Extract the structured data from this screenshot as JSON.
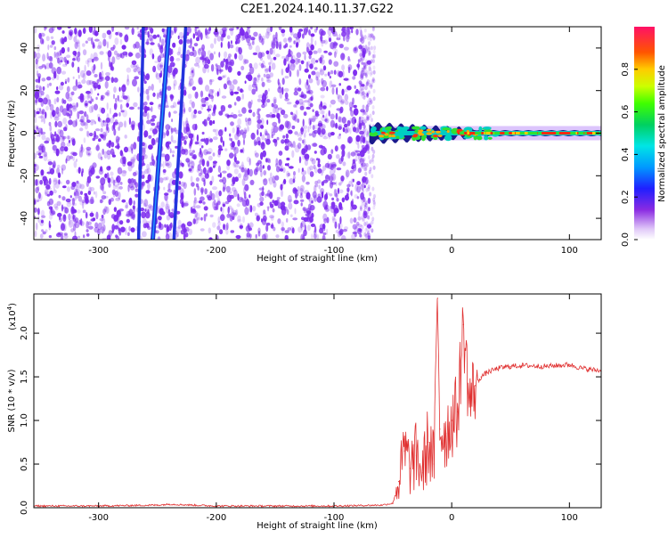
{
  "title": "C2E1.2024.140.11.37.G22",
  "colors": {
    "noise": "#7d2bef",
    "spectrum_band": "#2233dd",
    "snr_line": "#e03030"
  },
  "chart_data": [
    {
      "type": "heatmap",
      "name": "spectrogram",
      "xlabel": "Height of straight line (km)",
      "ylabel": "Frequency (Hz)",
      "xlim": [
        -355,
        127
      ],
      "ylim": [
        -50,
        50
      ],
      "x_ticks": [
        -300,
        -200,
        -100,
        0,
        100
      ],
      "y_ticks": [
        -40,
        -20,
        0,
        20,
        40
      ],
      "x_tick_labels": [
        "-300",
        "-200",
        "-100",
        "0",
        "100"
      ],
      "y_tick_labels": [
        "-40",
        "-20",
        "0",
        "20",
        "40"
      ],
      "noise_region_x": [
        -355,
        -70
      ],
      "signal_region_x": [
        -70,
        127
      ],
      "signal_frequency_hz": 0,
      "stripes": [
        {
          "x_at_top": -262,
          "x_at_bottom": -266
        },
        {
          "x_at_top": -240,
          "x_at_bottom": -254
        },
        {
          "x_at_top": -226,
          "x_at_bottom": -236
        }
      ],
      "colorbar": {
        "label": "Normalized spectral amplitude",
        "range": [
          0,
          1
        ],
        "ticks": [
          0.0,
          0.2,
          0.4,
          0.6,
          0.8
        ],
        "tick_labels": [
          "0.0",
          "0.2",
          "0.4",
          "0.6",
          "0.8"
        ]
      }
    },
    {
      "type": "line",
      "name": "snr",
      "xlabel": "Height of straight line (km)",
      "ylabel": "SNR (10 * v/v)",
      "yscale_label": "(x10",
      "yscale_exp": "4",
      "xlim": [
        -355,
        127
      ],
      "ylim": [
        0,
        2.45
      ],
      "x_ticks": [
        -300,
        -200,
        -100,
        0,
        100
      ],
      "y_ticks": [
        0.0,
        0.5,
        1.0,
        1.5,
        2.0
      ],
      "x_tick_labels": [
        "-300",
        "-200",
        "-100",
        "0",
        "100"
      ],
      "y_tick_labels": [
        "0.0",
        "0.5",
        "1.0",
        "1.5",
        "2.0"
      ],
      "series": [
        {
          "x": [
            -355,
            -300,
            -250,
            -240,
            -200,
            -150,
            -100,
            -60,
            -50,
            -45,
            -40,
            -35,
            -30,
            -25,
            -20,
            -15,
            -12,
            -10,
            -5,
            0,
            5,
            10,
            15,
            20,
            25,
            30,
            40,
            50,
            60,
            80,
            100,
            110,
            120,
            127
          ],
          "values": [
            0.02,
            0.02,
            0.03,
            0.04,
            0.02,
            0.02,
            0.02,
            0.03,
            0.05,
            0.3,
            0.65,
            0.45,
            0.6,
            0.4,
            0.75,
            0.5,
            2.4,
            0.9,
            0.85,
            1.0,
            1.1,
            2.1,
            1.2,
            1.4,
            1.5,
            1.55,
            1.6,
            1.62,
            1.63,
            1.62,
            1.64,
            1.6,
            1.58,
            1.57
          ]
        }
      ]
    }
  ]
}
